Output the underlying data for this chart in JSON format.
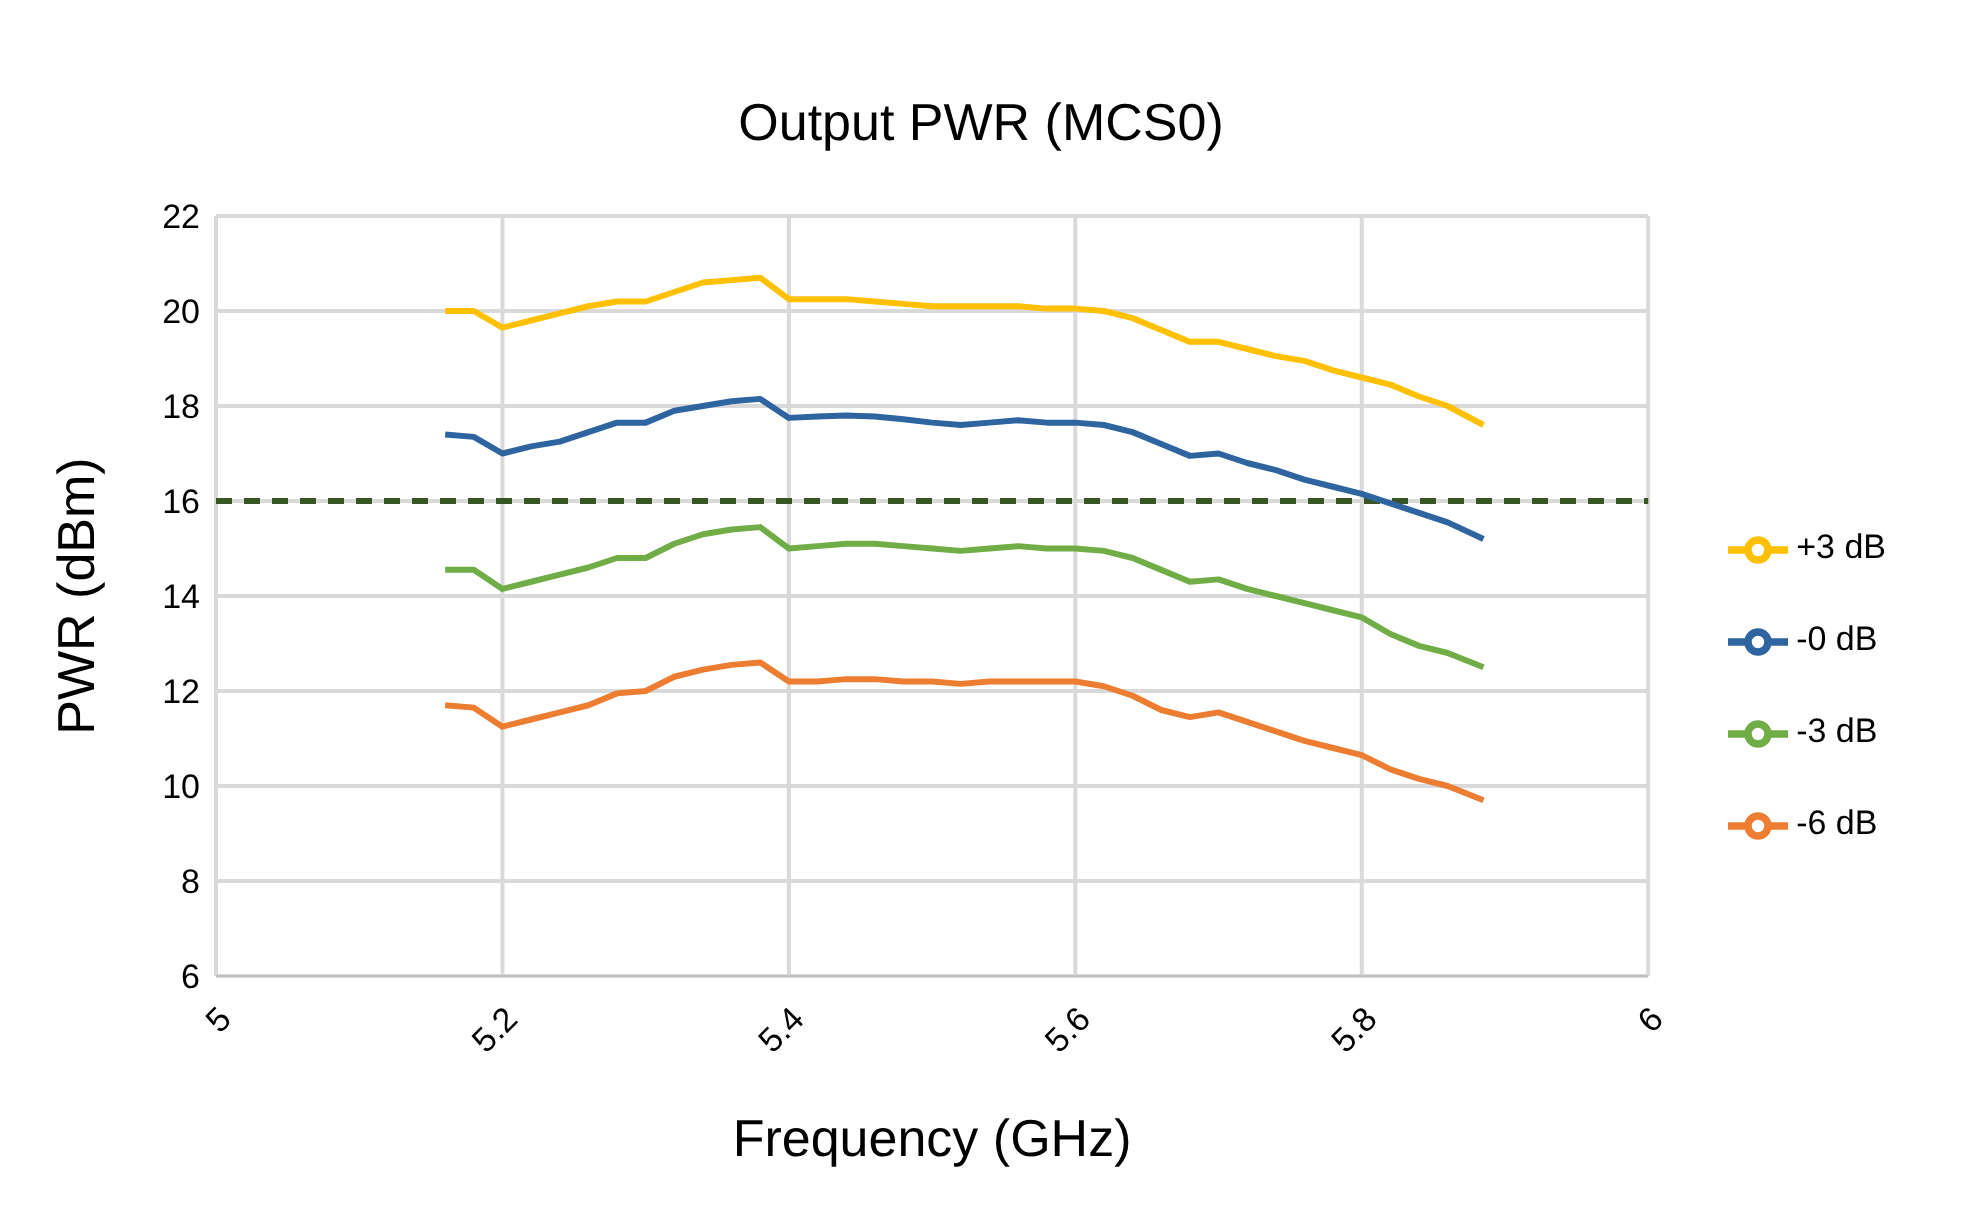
{
  "chart_data": {
    "type": "line",
    "title": "Output PWR (MCS0)",
    "xlabel": "Frequency (GHz)",
    "ylabel": "PWR (dBm)",
    "x": [
      5.16,
      5.18,
      5.2,
      5.22,
      5.24,
      5.26,
      5.28,
      5.3,
      5.32,
      5.34,
      5.36,
      5.38,
      5.4,
      5.42,
      5.44,
      5.46,
      5.48,
      5.5,
      5.52,
      5.54,
      5.56,
      5.58,
      5.6,
      5.62,
      5.64,
      5.66,
      5.68,
      5.7,
      5.72,
      5.74,
      5.76,
      5.78,
      5.8,
      5.82,
      5.84,
      5.86,
      5.885
    ],
    "series": [
      {
        "name": "+3 dB",
        "color": "#ffc000",
        "values": [
          20,
          20,
          19.65,
          19.8,
          19.95,
          20.1,
          20.2,
          20.2,
          20.4,
          20.6,
          20.65,
          20.7,
          20.25,
          20.25,
          20.25,
          20.2,
          20.15,
          20.1,
          20.1,
          20.1,
          20.1,
          20.05,
          20.05,
          20,
          19.85,
          19.6,
          19.35,
          19.35,
          19.2,
          19.05,
          18.95,
          18.75,
          18.6,
          18.45,
          18.2,
          18,
          17.6
        ]
      },
      {
        "name": "-0 dB",
        "color": "#2e64a0",
        "values": [
          17.4,
          17.35,
          17,
          17.15,
          17.25,
          17.45,
          17.65,
          17.65,
          17.9,
          18,
          18.1,
          18.15,
          17.75,
          17.78,
          17.8,
          17.78,
          17.72,
          17.65,
          17.6,
          17.65,
          17.7,
          17.65,
          17.65,
          17.6,
          17.45,
          17.2,
          16.95,
          17,
          16.8,
          16.65,
          16.45,
          16.3,
          16.15,
          15.95,
          15.75,
          15.55,
          15.2
        ]
      },
      {
        "name": "-3 dB",
        "color": "#70ad47",
        "values": [
          14.55,
          14.55,
          14.15,
          14.3,
          14.45,
          14.6,
          14.8,
          14.8,
          15.1,
          15.3,
          15.4,
          15.45,
          15,
          15.05,
          15.1,
          15.1,
          15.05,
          15,
          14.95,
          15,
          15.05,
          15,
          15,
          14.95,
          14.8,
          14.55,
          14.3,
          14.35,
          14.15,
          14,
          13.85,
          13.7,
          13.55,
          13.2,
          12.95,
          12.8,
          12.5
        ]
      },
      {
        "name": "-6 dB",
        "color": "#ed7d31",
        "values": [
          11.7,
          11.65,
          11.25,
          11.4,
          11.55,
          11.7,
          11.95,
          12,
          12.3,
          12.45,
          12.55,
          12.6,
          12.2,
          12.2,
          12.25,
          12.25,
          12.2,
          12.2,
          12.15,
          12.2,
          12.2,
          12.2,
          12.2,
          12.1,
          11.9,
          11.6,
          11.45,
          11.55,
          11.35,
          11.15,
          10.95,
          10.8,
          10.65,
          10.35,
          10.15,
          10,
          9.7
        ]
      }
    ],
    "xlim": [
      5,
      6
    ],
    "xticks": [
      5,
      5.2,
      5.4,
      5.6,
      5.8,
      6
    ],
    "ylim": [
      6,
      22
    ],
    "yticks": [
      6,
      8,
      10,
      12,
      14,
      16,
      18,
      20,
      22
    ],
    "ref_lines": [
      {
        "axis": "y",
        "value": 16,
        "color": "#375623",
        "line_style": "dashed"
      }
    ],
    "grid": true,
    "legend": "right",
    "marker": "none",
    "line_style": "solid"
  }
}
